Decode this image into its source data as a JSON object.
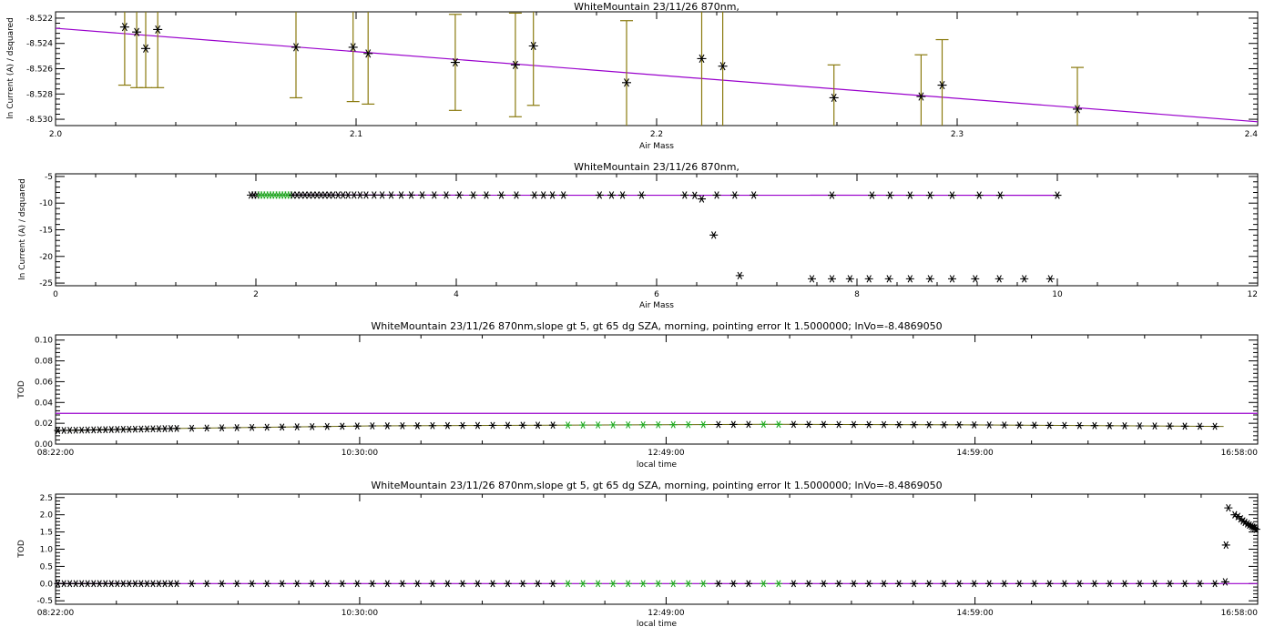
{
  "colors": {
    "fit": "#9900cc",
    "errbar": "#8a7a0e",
    "selected": "#22aa22",
    "points": "#000000",
    "background": "#ffffff"
  },
  "chart_data": [
    {
      "type": "scatter",
      "title": "WhiteMountain 23/11/26 870nm,",
      "xlabel": "Air Mass",
      "ylabel": "ln Current (A) / dsquared",
      "xlim": [
        2.0,
        2.4
      ],
      "ylim": [
        -8.5305,
        -8.5215
      ],
      "xticks": [
        2.0,
        2.1,
        2.2,
        2.3,
        2.4
      ],
      "xtick_labels": [
        "2.0",
        "2.1",
        "2.2",
        "2.3",
        "2.4"
      ],
      "yticks": [
        -8.522,
        -8.524,
        -8.526,
        -8.528,
        -8.53
      ],
      "ytick_labels": [
        "-8.522",
        "-8.524",
        "-8.526",
        "-8.528",
        "-8.530"
      ],
      "fit_line": {
        "x": [
          2.0,
          2.4
        ],
        "y": [
          -8.5228,
          -8.5302
        ]
      },
      "points": [
        {
          "x": 2.023,
          "y": -8.5227,
          "err": 0.0046
        },
        {
          "x": 2.027,
          "y": -8.5231,
          "err": 0.0044
        },
        {
          "x": 2.03,
          "y": -8.5244,
          "err": 0.0031
        },
        {
          "x": 2.034,
          "y": -8.5229,
          "err": 0.0046
        },
        {
          "x": 2.08,
          "y": -8.5243,
          "err": 0.004
        },
        {
          "x": 2.099,
          "y": -8.5243,
          "err": 0.0043
        },
        {
          "x": 2.104,
          "y": -8.5248,
          "err": 0.004
        },
        {
          "x": 2.133,
          "y": -8.5255,
          "err": 0.0038
        },
        {
          "x": 2.153,
          "y": -8.5257,
          "err": 0.0041
        },
        {
          "x": 2.159,
          "y": -8.5242,
          "err": 0.0047
        },
        {
          "x": 2.19,
          "y": -8.5271,
          "err": 0.0049
        },
        {
          "x": 2.215,
          "y": -8.5252,
          "err": 0.0055
        },
        {
          "x": 2.222,
          "y": -8.5258,
          "err": 0.0052
        },
        {
          "x": 2.259,
          "y": -8.5283,
          "err": 0.0026
        },
        {
          "x": 2.288,
          "y": -8.5282,
          "err": 0.0033
        },
        {
          "x": 2.295,
          "y": -8.5273,
          "err": 0.0036
        },
        {
          "x": 2.34,
          "y": -8.5292,
          "err": 0.0033
        }
      ]
    },
    {
      "type": "scatter",
      "title": "WhiteMountain 23/11/26 870nm,",
      "xlabel": "Air Mass",
      "ylabel": "ln Current (A) / dsquared",
      "xlim": [
        0,
        12
      ],
      "ylim": [
        -25.5,
        -4.5
      ],
      "xticks": [
        0,
        2,
        4,
        6,
        8,
        10,
        12
      ],
      "xtick_labels": [
        "0",
        "2",
        "4",
        "6",
        "8",
        "10",
        "12"
      ],
      "yticks": [
        -5,
        -10,
        -15,
        -20,
        -25
      ],
      "ytick_labels": [
        "-5",
        "-10",
        "-15",
        "-20",
        "-25"
      ],
      "fit_line": {
        "x": [
          1.95,
          10.0
        ],
        "y": [
          -8.49,
          -8.53
        ]
      },
      "points_x": [
        1.95,
        1.98,
        2.01,
        2.04,
        2.07,
        2.1,
        2.13,
        2.16,
        2.19,
        2.22,
        2.25,
        2.28,
        2.31,
        2.34,
        2.37,
        2.41,
        2.45,
        2.49,
        2.53,
        2.57,
        2.61,
        2.65,
        2.69,
        2.73,
        2.77,
        2.82,
        2.87,
        2.92,
        2.98,
        3.04,
        3.1,
        3.18,
        3.26,
        3.35,
        3.45,
        3.55,
        3.66,
        3.78,
        3.9,
        4.03,
        4.17,
        4.3,
        4.45,
        4.6,
        4.78,
        4.87,
        4.96,
        5.07,
        5.43,
        5.55,
        5.66,
        5.85,
        6.28,
        6.38,
        6.45,
        6.6,
        6.78,
        6.97,
        7.75,
        8.15,
        8.33,
        8.53,
        8.73,
        8.95,
        9.22,
        9.43,
        10.0,
        6.57,
        6.83,
        7.55,
        7.75,
        7.93,
        8.12,
        8.32,
        8.53,
        8.73,
        8.95,
        9.18,
        9.42,
        9.67,
        9.93
      ],
      "points_y": [
        -8.49,
        -8.49,
        -8.49,
        -8.49,
        -8.49,
        -8.49,
        -8.49,
        -8.49,
        -8.49,
        -8.49,
        -8.49,
        -8.49,
        -8.49,
        -8.49,
        -8.49,
        -8.49,
        -8.49,
        -8.49,
        -8.49,
        -8.49,
        -8.49,
        -8.49,
        -8.49,
        -8.49,
        -8.49,
        -8.49,
        -8.49,
        -8.49,
        -8.49,
        -8.49,
        -8.49,
        -8.49,
        -8.49,
        -8.49,
        -8.49,
        -8.49,
        -8.49,
        -8.49,
        -8.49,
        -8.49,
        -8.5,
        -8.5,
        -8.5,
        -8.5,
        -8.5,
        -8.5,
        -8.5,
        -8.5,
        -8.5,
        -8.5,
        -8.5,
        -8.5,
        -8.5,
        -8.55,
        -9.2,
        -8.5,
        -8.5,
        -8.5,
        -8.52,
        -8.52,
        -8.52,
        -8.52,
        -8.52,
        -8.52,
        -8.52,
        -8.52,
        -8.52,
        -16.0,
        -23.6,
        -24.2,
        -24.2,
        -24.2,
        -24.2,
        -24.2,
        -24.2,
        -24.2,
        -24.2,
        -24.2,
        -24.2,
        -24.2,
        -24.2
      ],
      "selected_x_range": [
        2.02,
        2.35
      ]
    },
    {
      "type": "scatter",
      "title": "WhiteMountain 23/11/26 870nm,slope gt 5, gt 65 dg SZA, morning, pointing error lt 1.5000000; lnVo=-8.4869050",
      "xlabel": "local time",
      "ylabel": "TOD",
      "xlim": [
        0,
        30360
      ],
      "ylim": [
        0,
        0.105
      ],
      "xticks": [
        0,
        7680,
        15420,
        23220,
        30360
      ],
      "xtick_labels": [
        "08:22:00",
        "10:30:00",
        "12:49:00",
        "14:59:00",
        "16:58:00"
      ],
      "yticks": [
        0,
        0.02,
        0.04,
        0.06,
        0.08,
        0.1
      ],
      "ytick_labels": [
        "0.00",
        "0.02",
        "0.04",
        "0.06",
        "0.08",
        "0.10"
      ],
      "hline": 0.0295,
      "tod_series": [
        {
          "t": [
            0,
            3000
          ],
          "v": [
            0.013,
            0.015
          ]
        },
        {
          "t": [
            3000,
            8000
          ],
          "v": [
            0.015,
            0.0175
          ]
        },
        {
          "t": [
            8000,
            18000
          ],
          "v": [
            0.0175,
            0.019
          ]
        },
        {
          "t": [
            18000,
            23000
          ],
          "v": [
            0.019,
            0.0185
          ]
        },
        {
          "t": [
            23000,
            29500
          ],
          "v": [
            0.0185,
            0.017
          ]
        }
      ],
      "selected_t_ranges": [
        [
          12900,
          16700
        ],
        [
          17650,
          18300
        ]
      ]
    },
    {
      "type": "scatter",
      "title": "WhiteMountain 23/11/26 870nm,slope gt 5, gt 65 dg SZA, morning, pointing error lt 1.5000000; lnVo=-8.4869050",
      "xlabel": "local time",
      "ylabel": "TOD",
      "xlim": [
        0,
        30360
      ],
      "ylim": [
        -0.6,
        2.6
      ],
      "xticks": [
        0,
        7680,
        15420,
        23220,
        30360
      ],
      "xtick_labels": [
        "08:22:00",
        "10:30:00",
        "12:49:00",
        "14:59:00",
        "16:58:00"
      ],
      "yticks": [
        -0.5,
        0.0,
        0.5,
        1.0,
        1.5,
        2.0,
        2.5
      ],
      "ytick_labels": [
        "-0.5",
        "0.0",
        "0.5",
        "1.0",
        "1.5",
        "2.0",
        "2.5"
      ],
      "tod_baseline": 0.0,
      "late_points": [
        {
          "t": 29540,
          "v": 0.05
        },
        {
          "t": 29560,
          "v": 1.12
        },
        {
          "t": 29620,
          "v": 2.2
        },
        {
          "t": 29780,
          "v": 2.0
        },
        {
          "t": 29860,
          "v": 1.95
        },
        {
          "t": 29930,
          "v": 1.88
        },
        {
          "t": 29990,
          "v": 1.82
        },
        {
          "t": 30040,
          "v": 1.78
        },
        {
          "t": 30100,
          "v": 1.74
        },
        {
          "t": 30150,
          "v": 1.7
        },
        {
          "t": 30200,
          "v": 1.67
        },
        {
          "t": 30240,
          "v": 1.64
        },
        {
          "t": 30280,
          "v": 1.61
        },
        {
          "t": 30320,
          "v": 1.58
        }
      ],
      "selected_t_ranges": [
        [
          12900,
          16700
        ],
        [
          17650,
          18300
        ]
      ]
    }
  ]
}
